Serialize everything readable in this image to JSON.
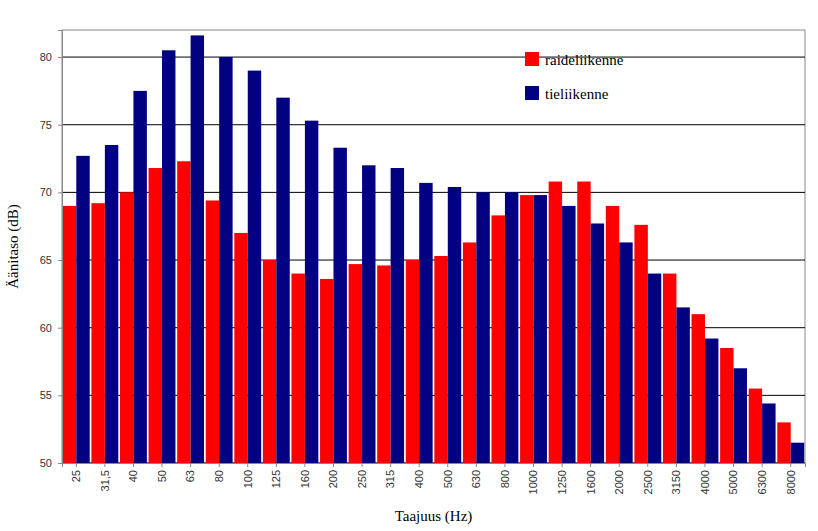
{
  "chart_data": {
    "type": "bar",
    "x_label": "Taajuus (Hz)",
    "y_label": "Äänitaso (dB)",
    "categories": [
      "25",
      "31,5",
      "40",
      "50",
      "63",
      "80",
      "100",
      "125",
      "160",
      "200",
      "250",
      "315",
      "400",
      "500",
      "630",
      "800",
      "1000",
      "1250",
      "1600",
      "2000",
      "2500",
      "3150",
      "4000",
      "5000",
      "6300",
      "8000"
    ],
    "series": [
      {
        "name": "raideliikenne",
        "color": "#ff0000",
        "values": [
          69,
          69.2,
          70,
          71.8,
          72.3,
          69.4,
          67,
          65,
          64,
          63.6,
          64.7,
          64.6,
          65,
          65.3,
          66.3,
          68.3,
          69.8,
          70.8,
          70.8,
          69,
          67.6,
          64,
          61,
          58.5,
          55.5,
          53
        ]
      },
      {
        "name": "tieliikenne",
        "color": "#000080",
        "values": [
          72.7,
          73.5,
          77.5,
          80.5,
          81.6,
          80,
          79,
          77,
          75.3,
          73.3,
          72,
          71.8,
          70.7,
          70.4,
          70,
          70,
          69.8,
          69,
          67.7,
          66.3,
          64,
          61.5,
          59.2,
          57,
          54.4,
          51.5
        ]
      }
    ],
    "ylim": [
      50,
      82
    ],
    "yticks": [
      50,
      55,
      60,
      65,
      70,
      75,
      80
    ],
    "grid": true,
    "legend": "top-right"
  }
}
